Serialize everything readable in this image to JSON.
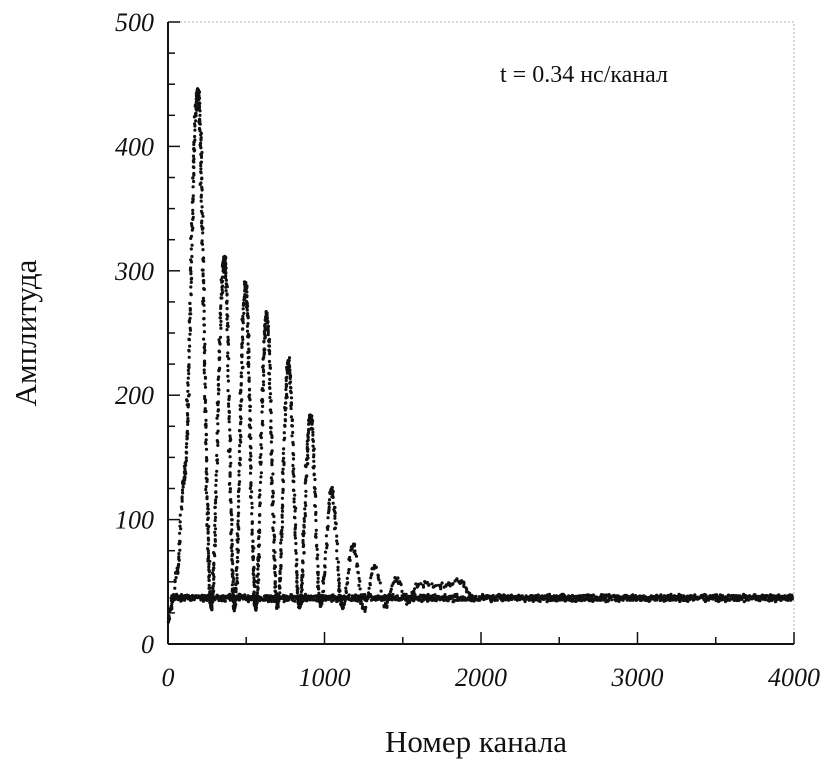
{
  "chart_data": {
    "type": "scatter",
    "title": "",
    "xlabel": "Номер канала",
    "ylabel": "Амплитуда",
    "annotation": "t = 0.34 нс/канал",
    "xlim": [
      0,
      4000
    ],
    "ylim": [
      0,
      500
    ],
    "x_ticks": [
      "0",
      "1000",
      "2000",
      "3000",
      "4000"
    ],
    "y_ticks": [
      "0",
      "100",
      "200",
      "300",
      "400",
      "500"
    ],
    "grid": false,
    "legend": "none",
    "marker_color": "#111111",
    "baseline": 37,
    "series": [
      {
        "peaks": [
          {
            "x": 190,
            "y": 445
          },
          {
            "x": 360,
            "y": 310
          },
          {
            "x": 495,
            "y": 288
          },
          {
            "x": 630,
            "y": 265
          },
          {
            "x": 770,
            "y": 226
          },
          {
            "x": 910,
            "y": 183
          },
          {
            "x": 1045,
            "y": 123
          },
          {
            "x": 1185,
            "y": 80
          },
          {
            "x": 1320,
            "y": 63
          },
          {
            "x": 1460,
            "y": 52
          },
          {
            "x": 1600,
            "y": 48
          },
          {
            "x": 1740,
            "y": 47
          },
          {
            "x": 1870,
            "y": 50
          }
        ],
        "troughs": [
          {
            "x": 275,
            "y": 30
          },
          {
            "x": 425,
            "y": 30
          },
          {
            "x": 560,
            "y": 30
          },
          {
            "x": 700,
            "y": 30
          },
          {
            "x": 840,
            "y": 30
          },
          {
            "x": 975,
            "y": 32
          },
          {
            "x": 1115,
            "y": 30
          },
          {
            "x": 1250,
            "y": 28
          },
          {
            "x": 1390,
            "y": 32
          },
          {
            "x": 1530,
            "y": 34
          }
        ],
        "start": [
          {
            "x": 0,
            "y": 18
          },
          {
            "x": 20,
            "y": 30
          },
          {
            "x": 60,
            "y": 60
          },
          {
            "x": 100,
            "y": 130
          }
        ]
      }
    ]
  }
}
